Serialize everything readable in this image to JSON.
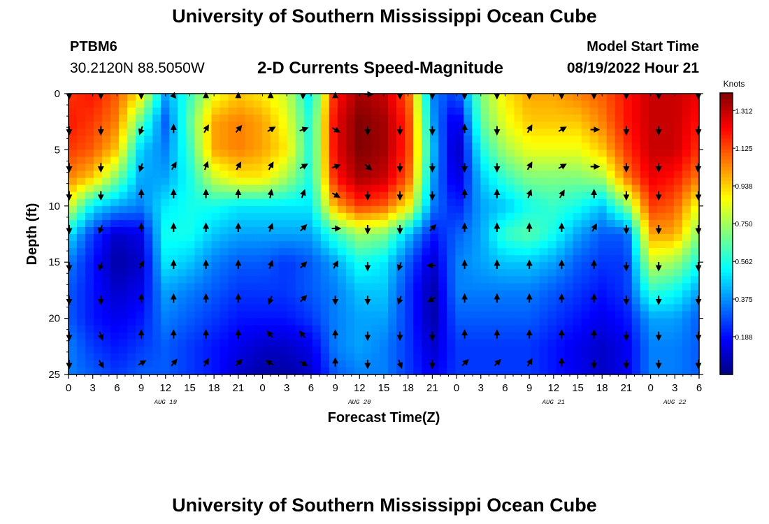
{
  "header": {
    "title": "University of Southern Mississippi Ocean Cube",
    "station_id": "PTBM6",
    "station_coords": "30.2120N  88.5050W",
    "model_start_label": "Model Start Time",
    "model_start_value": "08/19/2022 Hour 21"
  },
  "footer": {
    "title": "University of Southern Mississippi Ocean Cube"
  },
  "chart_data": {
    "type": "heatmap",
    "title": "2-D Currents Speed-Magnitude",
    "xlabel": "Forecast Time(Z)",
    "ylabel": "Depth (ft)",
    "x_range": [
      0,
      78
    ],
    "y_range": [
      0,
      25
    ],
    "y_inverted": true,
    "x_ticks": [
      0,
      3,
      6,
      9,
      12,
      15,
      18,
      21,
      24,
      27,
      30,
      33,
      36,
      39,
      42,
      45,
      48,
      51,
      54,
      57,
      60,
      63,
      66,
      69,
      72,
      75,
      78
    ],
    "x_tick_labels": [
      "0",
      "3",
      "6",
      "9",
      "12",
      "15",
      "18",
      "21",
      "0",
      "3",
      "6",
      "9",
      "12",
      "15",
      "18",
      "21",
      "0",
      "3",
      "6",
      "9",
      "12",
      "15",
      "18",
      "21",
      "0",
      "3",
      "6"
    ],
    "y_ticks": [
      0,
      5,
      10,
      15,
      20,
      25
    ],
    "y_tick_labels": [
      "0",
      "5",
      "10",
      "15",
      "20",
      "25"
    ],
    "date_labels": [
      {
        "text": "AUG 19",
        "x": 12
      },
      {
        "text": "AUG 20",
        "x": 36
      },
      {
        "text": "AUG 21",
        "x": 60
      },
      {
        "text": "AUG 22",
        "x": 75
      }
    ],
    "colorbar": {
      "label": "Knots",
      "min": 0,
      "max": 1.4,
      "ticks": [
        1.312,
        1.125,
        0.938,
        0.75,
        0.562,
        0.375,
        0.188
      ],
      "tick_labels": [
        "1.312",
        "1.125",
        "0.938",
        "0.750",
        "0.562",
        "0.375",
        "0.188"
      ],
      "colormap": "jet"
    },
    "speed_knots": {
      "times": [
        0,
        3,
        6,
        9,
        12,
        15,
        18,
        21,
        24,
        27,
        30,
        33,
        36,
        39,
        42,
        45,
        48,
        51,
        54,
        57,
        60,
        63,
        66,
        69,
        72,
        75,
        78
      ],
      "depths": [
        0,
        2.5,
        5,
        7.5,
        10,
        12.5,
        15,
        17.5,
        20,
        22.5,
        25
      ],
      "rows": [
        [
          1.15,
          1.2,
          1.1,
          0.9,
          0.4,
          0.6,
          0.85,
          0.95,
          0.9,
          0.8,
          0.5,
          1.2,
          1.35,
          1.3,
          1.1,
          0.35,
          0.25,
          0.7,
          0.9,
          1.0,
          1.0,
          1.05,
          1.1,
          1.2,
          1.3,
          1.3,
          1.25
        ],
        [
          1.2,
          1.15,
          1.05,
          0.65,
          0.3,
          0.65,
          1.0,
          1.05,
          1.0,
          0.85,
          0.55,
          1.25,
          1.4,
          1.35,
          1.15,
          0.4,
          0.1,
          0.65,
          0.85,
          0.95,
          0.95,
          0.95,
          1.05,
          1.2,
          1.3,
          1.3,
          1.2
        ],
        [
          1.15,
          1.1,
          0.95,
          0.45,
          0.35,
          0.6,
          1.0,
          1.05,
          1.0,
          0.9,
          0.55,
          1.25,
          1.4,
          1.35,
          1.15,
          0.45,
          0.05,
          0.55,
          0.75,
          0.85,
          0.85,
          0.85,
          0.95,
          1.15,
          1.3,
          1.3,
          1.15
        ],
        [
          1.05,
          0.95,
          0.7,
          0.4,
          0.4,
          0.55,
          0.8,
          0.9,
          0.9,
          0.75,
          0.55,
          1.2,
          1.35,
          1.3,
          1.1,
          0.4,
          0.1,
          0.45,
          0.6,
          0.7,
          0.7,
          0.7,
          0.75,
          1.05,
          1.25,
          1.2,
          1.05
        ],
        [
          0.85,
          0.5,
          0.4,
          0.35,
          0.5,
          0.55,
          0.55,
          0.5,
          0.5,
          0.5,
          0.5,
          1.0,
          1.15,
          1.1,
          0.9,
          0.35,
          0.2,
          0.4,
          0.45,
          0.55,
          0.6,
          0.55,
          0.45,
          0.7,
          1.15,
          1.1,
          0.85
        ],
        [
          0.5,
          0.25,
          0.1,
          0.15,
          0.55,
          0.55,
          0.45,
          0.4,
          0.4,
          0.4,
          0.4,
          0.6,
          0.75,
          0.7,
          0.45,
          0.2,
          0.3,
          0.4,
          0.6,
          0.65,
          0.55,
          0.4,
          0.3,
          0.3,
          1.0,
          1.0,
          0.7
        ],
        [
          0.35,
          0.2,
          0.05,
          0.1,
          0.5,
          0.45,
          0.35,
          0.3,
          0.3,
          0.25,
          0.3,
          0.4,
          0.55,
          0.5,
          0.3,
          0.1,
          0.35,
          0.4,
          0.45,
          0.45,
          0.4,
          0.3,
          0.25,
          0.25,
          0.8,
          0.75,
          0.55
        ],
        [
          0.3,
          0.2,
          0.1,
          0.15,
          0.4,
          0.35,
          0.3,
          0.25,
          0.25,
          0.25,
          0.3,
          0.35,
          0.45,
          0.45,
          0.25,
          0.05,
          0.35,
          0.35,
          0.35,
          0.35,
          0.3,
          0.25,
          0.2,
          0.25,
          0.6,
          0.55,
          0.4
        ],
        [
          0.3,
          0.2,
          0.15,
          0.2,
          0.35,
          0.3,
          0.25,
          0.2,
          0.2,
          0.2,
          0.25,
          0.35,
          0.4,
          0.4,
          0.25,
          0.05,
          0.3,
          0.3,
          0.3,
          0.3,
          0.25,
          0.2,
          0.15,
          0.2,
          0.4,
          0.4,
          0.3
        ],
        [
          0.35,
          0.25,
          0.2,
          0.25,
          0.3,
          0.25,
          0.2,
          0.15,
          0.1,
          0.1,
          0.15,
          0.35,
          0.4,
          0.35,
          0.25,
          0.1,
          0.25,
          0.25,
          0.25,
          0.25,
          0.2,
          0.15,
          0.1,
          0.15,
          0.35,
          0.35,
          0.3
        ],
        [
          0.35,
          0.3,
          0.25,
          0.3,
          0.3,
          0.25,
          0.2,
          0.1,
          0.05,
          0.05,
          0.1,
          0.3,
          0.35,
          0.35,
          0.25,
          0.15,
          0.25,
          0.25,
          0.25,
          0.25,
          0.2,
          0.15,
          0.1,
          0.15,
          0.35,
          0.35,
          0.3
        ]
      ]
    },
    "vectors": {
      "times": [
        0,
        4,
        9,
        13,
        17,
        21,
        25,
        29,
        33,
        37,
        41,
        45,
        49,
        53,
        57,
        61,
        65,
        69,
        73,
        78
      ],
      "depths": [
        0,
        3.2,
        6.5,
        9,
        12,
        15.3,
        18.3,
        21.5,
        24
      ],
      "direction_deg": [
        [
          180,
          180,
          180,
          160,
          0,
          0,
          0,
          180,
          0,
          90,
          180,
          180,
          180,
          180,
          180,
          180,
          180,
          180,
          180,
          180
        ],
        [
          180,
          180,
          200,
          0,
          30,
          40,
          60,
          70,
          120,
          180,
          180,
          180,
          0,
          180,
          30,
          60,
          90,
          180,
          180,
          180
        ],
        [
          180,
          180,
          200,
          30,
          20,
          30,
          30,
          60,
          70,
          130,
          180,
          180,
          180,
          180,
          30,
          60,
          90,
          180,
          180,
          200
        ],
        [
          180,
          180,
          0,
          0,
          0,
          0,
          10,
          20,
          120,
          180,
          180,
          180,
          0,
          0,
          20,
          30,
          0,
          180,
          180,
          180
        ],
        [
          180,
          200,
          0,
          0,
          0,
          0,
          20,
          45,
          90,
          180,
          180,
          45,
          0,
          0,
          0,
          0,
          30,
          180,
          180,
          180
        ],
        [
          180,
          200,
          30,
          0,
          0,
          0,
          20,
          45,
          30,
          180,
          200,
          270,
          0,
          0,
          0,
          0,
          0,
          180,
          180,
          180
        ],
        [
          180,
          180,
          0,
          0,
          0,
          0,
          200,
          45,
          180,
          180,
          200,
          240,
          0,
          0,
          0,
          0,
          0,
          180,
          180,
          180
        ],
        [
          180,
          160,
          0,
          0,
          0,
          0,
          320,
          320,
          0,
          180,
          180,
          180,
          0,
          0,
          0,
          0,
          0,
          180,
          180,
          180
        ],
        [
          180,
          150,
          60,
          40,
          30,
          45,
          300,
          120,
          0,
          180,
          160,
          180,
          45,
          45,
          30,
          0,
          180,
          180,
          180,
          180
        ]
      ]
    }
  }
}
